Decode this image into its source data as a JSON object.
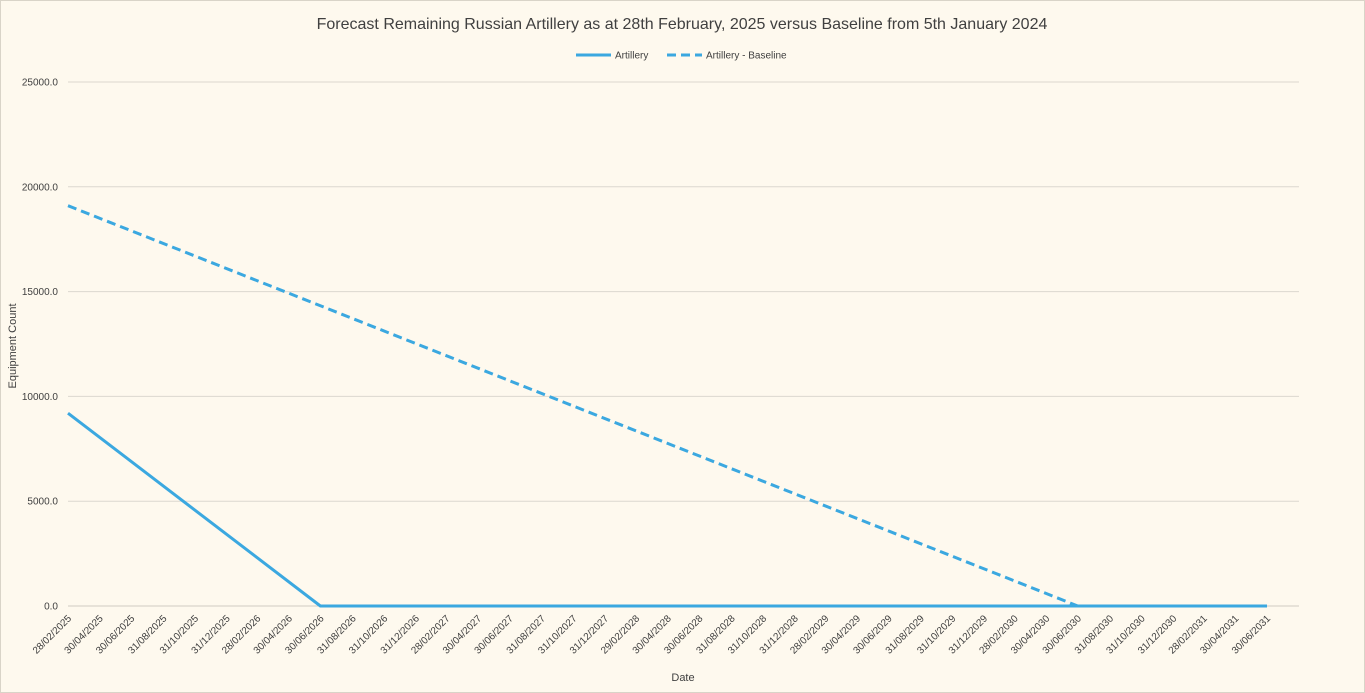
{
  "chart_data": {
    "type": "line",
    "title": "Forecast Remaining Russian Artillery as at 28th February, 2025 versus Baseline from 5th January 2024",
    "xlabel": "Date",
    "ylabel": "Equipment Count",
    "ylim": [
      0,
      25000
    ],
    "yticks": [
      "0.0",
      "5000.0",
      "10000.0",
      "15000.0",
      "20000.0",
      "25000.0"
    ],
    "x_tick_labels": [
      "28/02/2025",
      "30/04/2025",
      "30/06/2025",
      "31/08/2025",
      "31/10/2025",
      "31/12/2025",
      "28/02/2026",
      "30/04/2026",
      "30/06/2026",
      "31/08/2026",
      "31/10/2026",
      "31/12/2026",
      "28/02/2027",
      "30/04/2027",
      "30/06/2027",
      "31/08/2027",
      "31/10/2027",
      "31/12/2027",
      "29/02/2028",
      "30/04/2028",
      "30/06/2028",
      "31/08/2028",
      "31/10/2028",
      "31/12/2028",
      "28/02/2029",
      "30/04/2029",
      "30/06/2029",
      "31/08/2029",
      "31/10/2029",
      "31/12/2029",
      "28/02/2030",
      "30/04/2030",
      "30/06/2030",
      "31/08/2030",
      "31/10/2030",
      "31/12/2030",
      "28/02/2031",
      "30/04/2031",
      "30/06/2031"
    ],
    "grid": true,
    "legend_position": "top",
    "series": [
      {
        "name": "Artillery",
        "style": "solid",
        "color": "#3ba8e0",
        "points": [
          {
            "x": "28/02/2025",
            "y": 9200
          },
          {
            "x": "30/06/2026",
            "y": 0
          },
          {
            "x": "30/06/2031",
            "y": 0
          }
        ]
      },
      {
        "name": "Artillery - Baseline",
        "style": "dashed",
        "color": "#3ba8e0",
        "points": [
          {
            "x": "28/02/2025",
            "y": 19100
          },
          {
            "x": "30/06/2030",
            "y": 0
          },
          {
            "x": "30/06/2031",
            "y": 0
          }
        ]
      }
    ]
  }
}
